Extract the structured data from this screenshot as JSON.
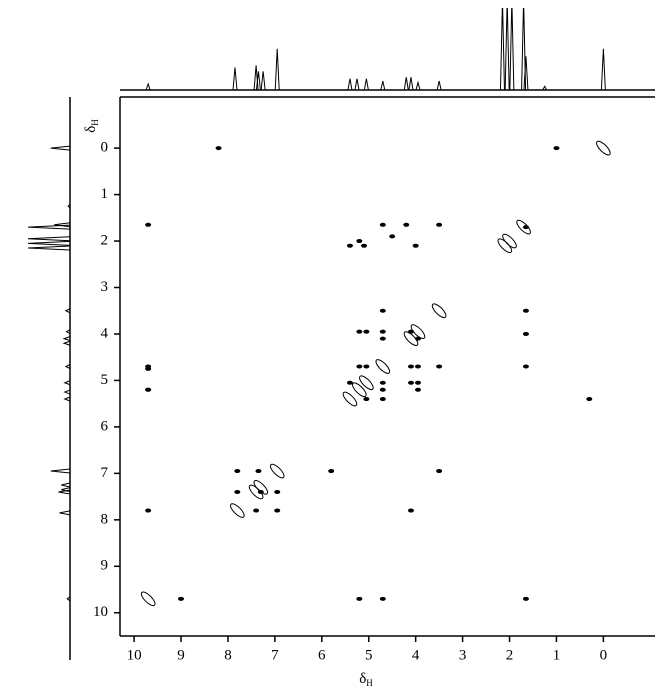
{
  "chart_data": {
    "type": "cosy",
    "x_label": "δ",
    "x_label_sub": "H",
    "y_label": "δ",
    "y_label_sub": "H",
    "xlim": [
      10.3,
      -1.1
    ],
    "ylim": [
      -1.1,
      10.5
    ],
    "xticks": [
      10,
      9,
      8,
      7,
      6,
      5,
      4,
      3,
      2,
      1,
      0
    ],
    "yticks": [
      0,
      1,
      2,
      3,
      4,
      5,
      6,
      7,
      8,
      9,
      10
    ],
    "color": "#000000",
    "projection": {
      "ppm": [
        9.7,
        7.85,
        7.4,
        7.35,
        7.25,
        6.95,
        5.4,
        5.25,
        5.05,
        4.7,
        4.2,
        4.1,
        3.95,
        3.5,
        2.15,
        2.05,
        1.95,
        1.7,
        1.65,
        1.25,
        0
      ],
      "intensity": [
        0.08,
        0.3,
        0.33,
        0.25,
        0.25,
        0.55,
        0.15,
        0.15,
        0.15,
        0.12,
        0.17,
        0.17,
        0.1,
        0.12,
        1.2,
        1.2,
        1.2,
        1.2,
        0.45,
        0.05,
        0.55
      ]
    },
    "diagonal": {
      "x": [
        9.7,
        7.8,
        7.4,
        7.3,
        6.95,
        5.4,
        5.2,
        5.05,
        4.7,
        4.1,
        3.95,
        3.5,
        2.1,
        2.0,
        1.7,
        0
      ],
      "y": [
        9.7,
        7.8,
        7.4,
        7.3,
        6.95,
        5.4,
        5.2,
        5.05,
        4.7,
        4.1,
        3.95,
        3.5,
        2.1,
        2.0,
        1.7,
        0
      ]
    },
    "cross_peaks": {
      "x": [
        9.7,
        9.7,
        9.7,
        9.7,
        9.0,
        4.7,
        4.2,
        3.5,
        5.4,
        5.1,
        4.0,
        5.2,
        4.5,
        4.7,
        1.65,
        5.2,
        5.05,
        4.7,
        4.1,
        4.7,
        3.95,
        9.7,
        5.2,
        5.05,
        4.1,
        3.95,
        3.5,
        1.65,
        5.4,
        4.7,
        4.1,
        3.95,
        9.7,
        4.7,
        3.95,
        5.05,
        4.7,
        7.8,
        7.35,
        5.8,
        3.5,
        7.8,
        7.3,
        6.95,
        7.4,
        6.95,
        4.1,
        5.2,
        4.7,
        1.65,
        1.65,
        1.65,
        1.0,
        0.3,
        8.2
      ],
      "y": [
        1.65,
        4.75,
        5.2,
        7.8,
        9.7,
        1.65,
        1.65,
        1.65,
        2.1,
        2.1,
        2.1,
        2.0,
        1.9,
        3.5,
        3.5,
        3.95,
        3.95,
        3.95,
        3.95,
        4.1,
        4.1,
        4.7,
        4.7,
        4.7,
        4.7,
        4.7,
        4.7,
        4.7,
        5.05,
        5.05,
        5.05,
        5.05,
        5.2,
        5.2,
        5.2,
        5.4,
        5.4,
        6.95,
        6.95,
        6.95,
        6.95,
        7.4,
        7.4,
        7.4,
        7.8,
        7.8,
        7.8,
        9.7,
        9.7,
        9.7,
        4.0,
        1.7,
        0.0,
        5.4,
        0.0
      ]
    }
  }
}
